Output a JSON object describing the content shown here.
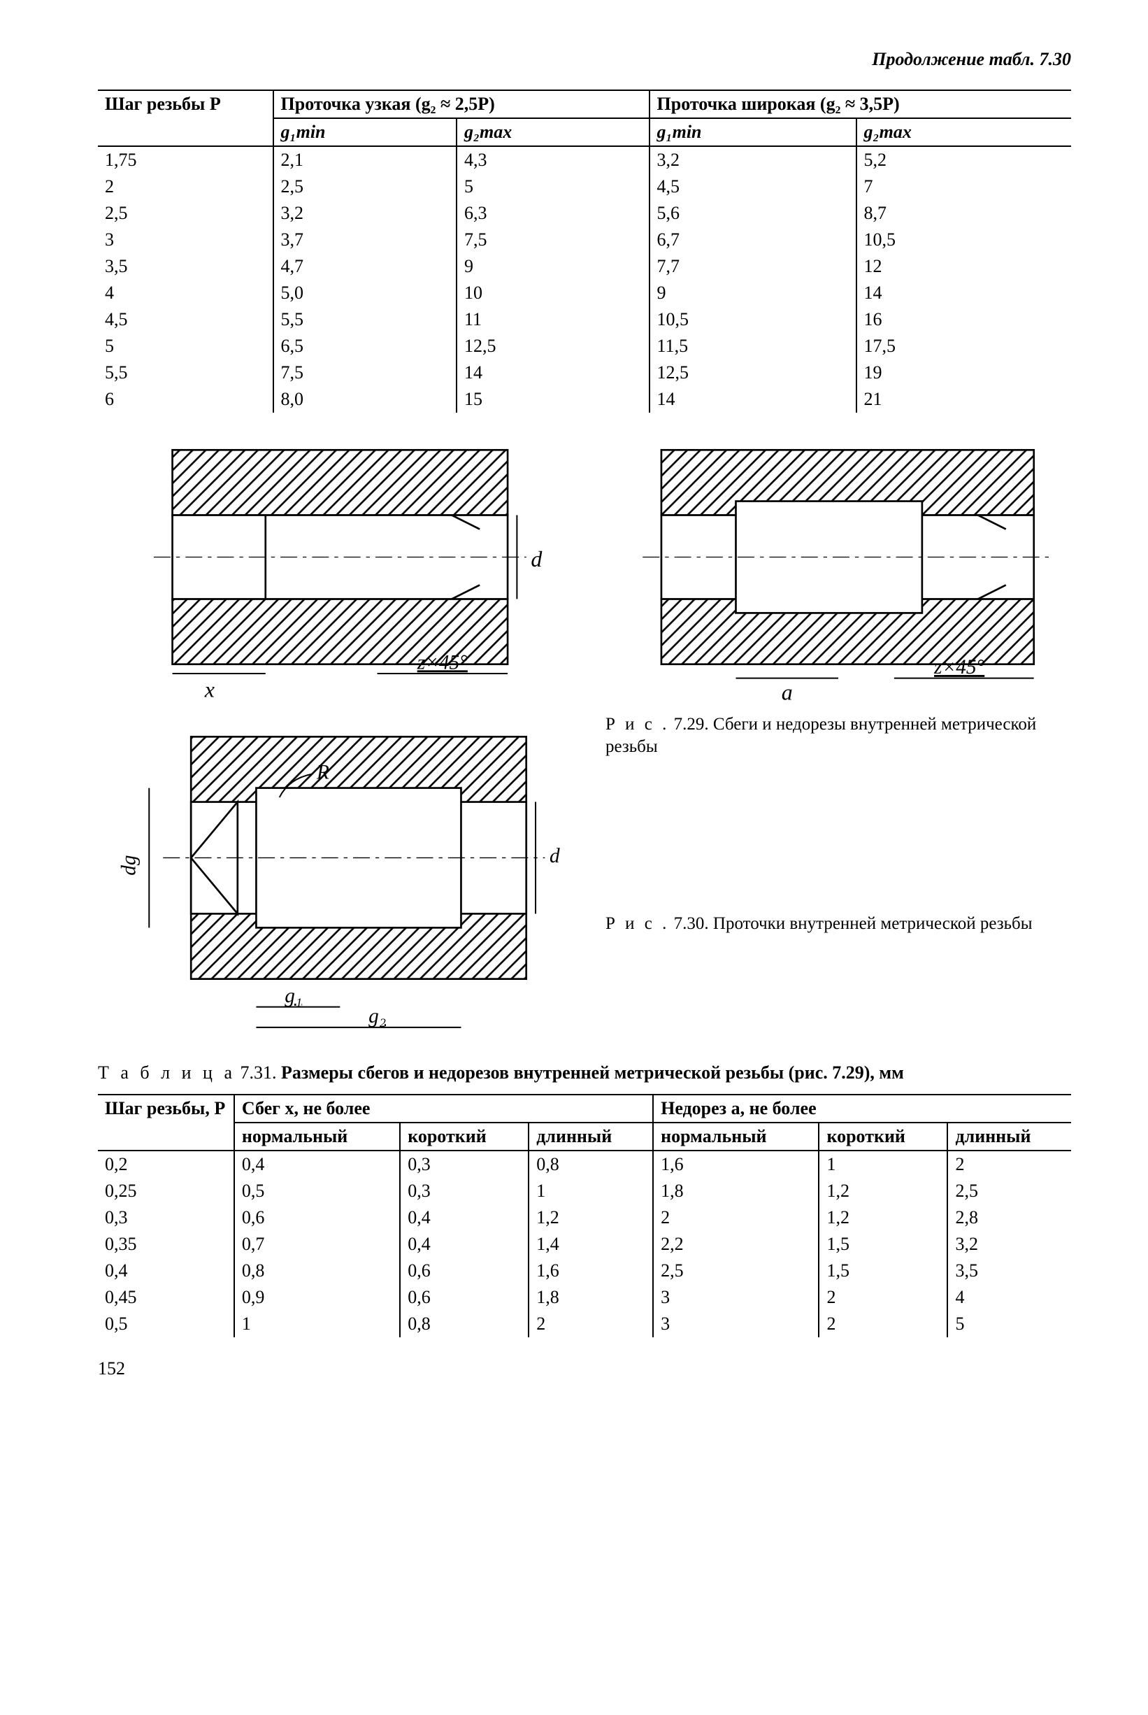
{
  "continuation_header": "Продолжение табл. 7.30",
  "table730": {
    "col_thread_pitch": "Шаг резьбы P",
    "group_narrow": "Проточка узкая (g₂ ≈ 2,5P)",
    "group_wide": "Проточка широкая (g₂ ≈ 3,5P)",
    "sub_g1min": "g₁min",
    "sub_g2max": "g₂max",
    "rows": [
      {
        "p": "1,75",
        "n1": "2,1",
        "n2": "4,3",
        "w1": "3,2",
        "w2": "5,2"
      },
      {
        "p": "2",
        "n1": "2,5",
        "n2": "5",
        "w1": "4,5",
        "w2": "7"
      },
      {
        "p": "2,5",
        "n1": "3,2",
        "n2": "6,3",
        "w1": "5,6",
        "w2": "8,7"
      },
      {
        "p": "3",
        "n1": "3,7",
        "n2": "7,5",
        "w1": "6,7",
        "w2": "10,5"
      },
      {
        "p": "3,5",
        "n1": "4,7",
        "n2": "9",
        "w1": "7,7",
        "w2": "12"
      },
      {
        "p": "4",
        "n1": "5,0",
        "n2": "10",
        "w1": "9",
        "w2": "14"
      },
      {
        "p": "4,5",
        "n1": "5,5",
        "n2": "11",
        "w1": "10,5",
        "w2": "16"
      },
      {
        "p": "5",
        "n1": "6,5",
        "n2": "12,5",
        "w1": "11,5",
        "w2": "17,5"
      },
      {
        "p": "5,5",
        "n1": "7,5",
        "n2": "14",
        "w1": "12,5",
        "w2": "19"
      },
      {
        "p": "6",
        "n1": "8,0",
        "n2": "15",
        "w1": "14",
        "w2": "21"
      }
    ]
  },
  "fig729": {
    "caption_lead": "Р и с .",
    "caption_num": "7.29.",
    "caption_text": "Сбеги и недорезы внутренней метрической резьбы",
    "labels": {
      "x": "x",
      "d": "d",
      "z": "z×45°",
      "a": "a"
    }
  },
  "fig730": {
    "caption_lead": "Р и с .",
    "caption_num": "7.30.",
    "caption_text": "Проточки внутренней метрической резьбы",
    "labels": {
      "g1": "g₁",
      "g2": "g₂",
      "d": "d",
      "dg": "dg",
      "R": "R"
    }
  },
  "table731_title_lead": "Т а б л и ц а",
  "table731_title_num": "7.31.",
  "table731_title_bold": "Размеры сбегов и недорезов внутренней метрической резьбы (рис. 7.29), мм",
  "table731": {
    "col_pitch": "Шаг резьбы, P",
    "group_sbeg": "Сбег x, не более",
    "group_nedorez": "Недорез a, не более",
    "sub_normal": "нормальный",
    "sub_short": "короткий",
    "sub_long": "длинный",
    "rows": [
      {
        "p": "0,2",
        "sn": "0,4",
        "ss": "0,3",
        "sl": "0,8",
        "an": "1,6",
        "as": "1",
        "al": "2"
      },
      {
        "p": "0,25",
        "sn": "0,5",
        "ss": "0,3",
        "sl": "1",
        "an": "1,8",
        "as": "1,2",
        "al": "2,5"
      },
      {
        "p": "0,3",
        "sn": "0,6",
        "ss": "0,4",
        "sl": "1,2",
        "an": "2",
        "as": "1,2",
        "al": "2,8"
      },
      {
        "p": "0,35",
        "sn": "0,7",
        "ss": "0,4",
        "sl": "1,4",
        "an": "2,2",
        "as": "1,5",
        "al": "3,2"
      },
      {
        "p": "0,4",
        "sn": "0,8",
        "ss": "0,6",
        "sl": "1,6",
        "an": "2,5",
        "as": "1,5",
        "al": "3,5"
      },
      {
        "p": "0,45",
        "sn": "0,9",
        "ss": "0,6",
        "sl": "1,8",
        "an": "3",
        "as": "2",
        "al": "4"
      },
      {
        "p": "0,5",
        "sn": "1",
        "ss": "0,8",
        "sl": "2",
        "an": "3",
        "as": "2",
        "al": "5"
      }
    ]
  },
  "page_number": "152",
  "colors": {
    "ink": "#000000",
    "paper": "#ffffff"
  }
}
